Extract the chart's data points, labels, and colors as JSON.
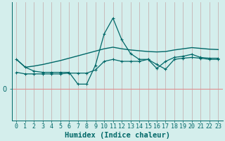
{
  "xlabel": "Humidex (Indice chaleur)",
  "background_color": "#d4eeec",
  "grid_color_v": "#c4a8a8",
  "grid_color_h": "#e09090",
  "line_color": "#006868",
  "x_values": [
    0,
    1,
    2,
    3,
    4,
    5,
    6,
    7,
    8,
    9,
    10,
    11,
    12,
    13,
    14,
    15,
    16,
    17,
    18,
    19,
    20,
    21,
    22,
    23
  ],
  "line1_y": [
    7.5,
    5.5,
    5.8,
    6.2,
    6.7,
    7.2,
    7.8,
    8.4,
    9.0,
    9.6,
    10.2,
    10.6,
    10.2,
    9.9,
    9.7,
    9.5,
    9.4,
    9.5,
    9.9,
    10.2,
    10.5,
    10.3,
    10.1,
    10.0
  ],
  "line2_y": [
    7.5,
    5.5,
    4.5,
    4.2,
    4.2,
    4.2,
    4.2,
    1.2,
    1.2,
    6.0,
    14.0,
    18.0,
    12.5,
    9.0,
    7.5,
    7.5,
    6.2,
    5.0,
    7.5,
    7.8,
    8.0,
    7.8,
    7.5,
    7.5
  ],
  "line3_y": [
    4.2,
    3.8,
    3.8,
    3.8,
    3.8,
    3.8,
    4.0,
    4.0,
    4.0,
    4.8,
    7.0,
    7.5,
    7.0,
    7.0,
    7.0,
    7.5,
    5.2,
    7.0,
    8.0,
    8.3,
    8.8,
    8.0,
    7.8,
    7.8
  ],
  "ylim": [
    -8,
    22
  ],
  "xlim": [
    -0.5,
    23.5
  ],
  "tick_fontsize": 6,
  "label_fontsize": 7.5
}
